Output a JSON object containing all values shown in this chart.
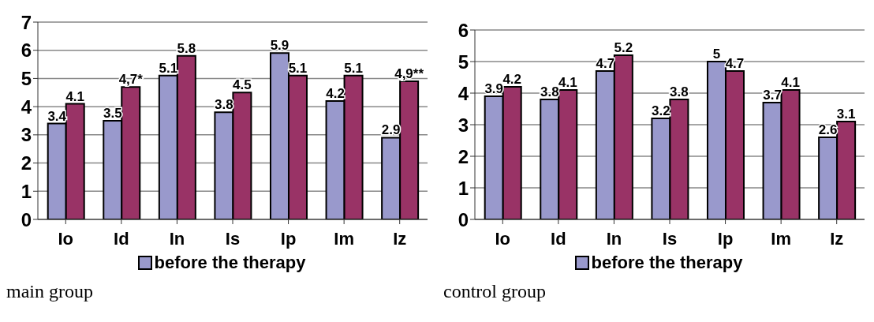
{
  "chart_data": [
    {
      "type": "bar",
      "categories": [
        "Io",
        "Id",
        "In",
        "Is",
        "Ip",
        "Im",
        "Iz"
      ],
      "series": [
        {
          "name": "before the therapy",
          "color": "#9999cc",
          "values": [
            3.4,
            3.5,
            5.1,
            3.8,
            5.9,
            4.2,
            2.9
          ],
          "value_labels": [
            "3.4",
            "3.5",
            "5.1",
            "3.8",
            "5.9",
            "4.2",
            "2.9"
          ]
        },
        {
          "color": "#993366",
          "values": [
            4.1,
            4.7,
            5.8,
            4.5,
            5.1,
            5.1,
            4.9
          ],
          "value_labels": [
            "4.1",
            "4,7*",
            "5.8",
            "4.5",
            "5.1",
            "5.1",
            "4,9**"
          ]
        }
      ],
      "ylim": [
        0,
        7
      ],
      "yticks": [
        0,
        1,
        2,
        3,
        4,
        5,
        6,
        7
      ],
      "grid": "y",
      "legend": "bottom",
      "annotations": [
        "main group"
      ]
    },
    {
      "type": "bar",
      "categories": [
        "Io",
        "Id",
        "In",
        "Is",
        "Ip",
        "Im",
        "Iz"
      ],
      "series": [
        {
          "name": "before the therapy",
          "color": "#9999cc",
          "values": [
            3.9,
            3.8,
            4.7,
            3.2,
            5,
            3.7,
            2.6
          ]
        },
        {
          "color": "#993366",
          "values": [
            4.2,
            4.1,
            5.2,
            3.8,
            4.7,
            4.1,
            3.1
          ]
        }
      ],
      "ylim": [
        0,
        6
      ],
      "yticks": [
        0,
        1,
        2,
        3,
        4,
        5,
        6
      ],
      "grid": "y",
      "legend": "bottom",
      "data_labels": true,
      "annotations": [
        "control group"
      ]
    }
  ]
}
